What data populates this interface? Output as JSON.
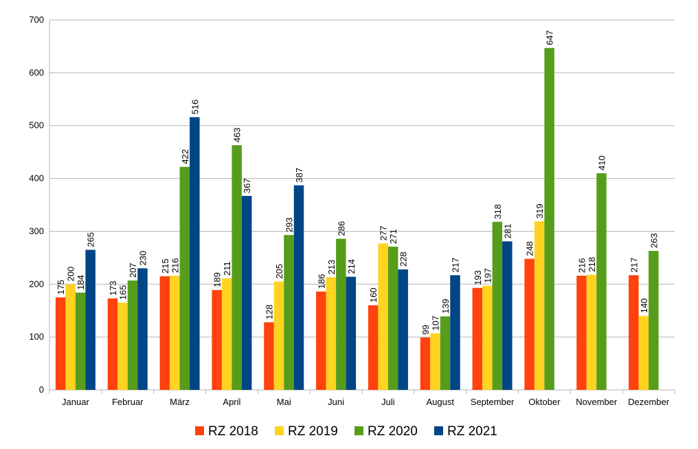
{
  "chart_data": {
    "type": "bar",
    "title": "",
    "xlabel": "",
    "ylabel": "",
    "ylim": [
      0,
      700
    ],
    "yticks": [
      0,
      100,
      200,
      300,
      400,
      500,
      600,
      700
    ],
    "grid": true,
    "legend_position": "bottom",
    "categories": [
      "Januar",
      "Februar",
      "März",
      "April",
      "Mai",
      "Juni",
      "Juli",
      "August",
      "September",
      "Oktober",
      "November",
      "Dezember"
    ],
    "series": [
      {
        "name": "RZ 2018",
        "color": "#ff420e",
        "values": [
          175,
          173,
          215,
          189,
          128,
          186,
          160,
          99,
          193,
          248,
          216,
          217
        ]
      },
      {
        "name": "RZ 2019",
        "color": "#ffd320",
        "values": [
          200,
          165,
          216,
          211,
          205,
          213,
          277,
          107,
          197,
          319,
          218,
          140
        ]
      },
      {
        "name": "RZ 2020",
        "color": "#579d1c",
        "values": [
          184,
          207,
          422,
          463,
          293,
          286,
          271,
          139,
          318,
          647,
          410,
          263
        ]
      },
      {
        "name": "RZ 2021",
        "color": "#004586",
        "values": [
          265,
          230,
          516,
          367,
          387,
          214,
          228,
          217,
          281,
          null,
          null,
          null
        ]
      }
    ]
  }
}
